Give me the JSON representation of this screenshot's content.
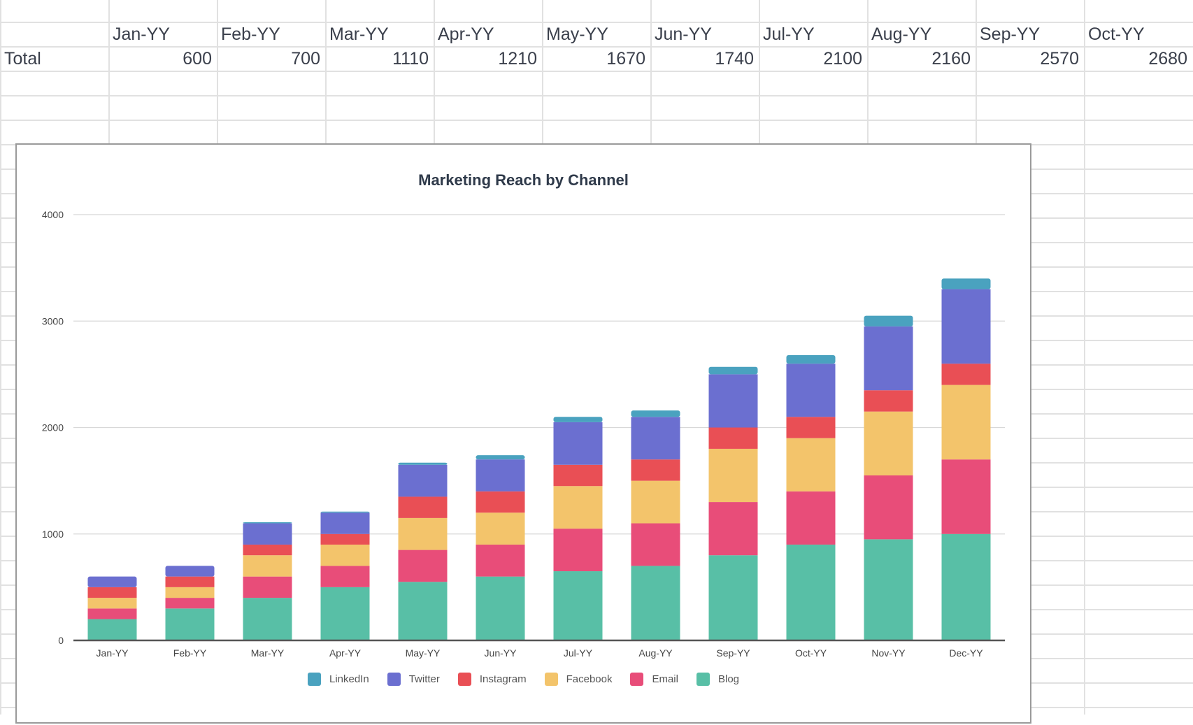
{
  "sheet": {
    "header_row": [
      "",
      "Jan-YY",
      "Feb-YY",
      "Mar-YY",
      "Apr-YY",
      "May-YY",
      "Jun-YY",
      "Jul-YY",
      "Aug-YY",
      "Sep-YY",
      "Oct-YY"
    ],
    "total_row": [
      "Total",
      "600",
      "700",
      "1110",
      "1210",
      "1670",
      "1740",
      "2100",
      "2160",
      "2570",
      "2680"
    ]
  },
  "chart_data": {
    "type": "bar",
    "stacked": true,
    "title": "Marketing Reach by Channel",
    "xlabel": "",
    "ylabel": "",
    "ylim": [
      0,
      4000
    ],
    "yticks": [
      0,
      1000,
      2000,
      3000,
      4000
    ],
    "grid": true,
    "legend_position": "bottom",
    "categories": [
      "Jan-YY",
      "Feb-YY",
      "Mar-YY",
      "Apr-YY",
      "May-YY",
      "Jun-YY",
      "Jul-YY",
      "Aug-YY",
      "Sep-YY",
      "Oct-YY",
      "Nov-YY",
      "Dec-YY"
    ],
    "series": [
      {
        "name": "Blog",
        "color": "#58bfa6",
        "values": [
          200,
          300,
          400,
          500,
          550,
          600,
          650,
          700,
          800,
          900,
          950,
          1000
        ]
      },
      {
        "name": "Email",
        "color": "#e84d79",
        "values": [
          100,
          100,
          200,
          200,
          300,
          300,
          400,
          400,
          500,
          500,
          600,
          700
        ]
      },
      {
        "name": "Facebook",
        "color": "#f3c46b",
        "values": [
          100,
          100,
          200,
          200,
          300,
          300,
          400,
          400,
          500,
          500,
          600,
          700
        ]
      },
      {
        "name": "Instagram",
        "color": "#e94f55",
        "values": [
          100,
          100,
          100,
          100,
          200,
          200,
          200,
          200,
          200,
          200,
          200,
          200
        ]
      },
      {
        "name": "Twitter",
        "color": "#6b6fd0",
        "values": [
          100,
          100,
          200,
          200,
          300,
          300,
          400,
          400,
          500,
          500,
          600,
          700
        ]
      },
      {
        "name": "LinkedIn",
        "color": "#4aa2bf",
        "values": [
          0,
          0,
          10,
          10,
          20,
          40,
          50,
          60,
          70,
          80,
          100,
          100
        ]
      }
    ],
    "legend_order": [
      "LinkedIn",
      "Twitter",
      "Instagram",
      "Facebook",
      "Email",
      "Blog"
    ]
  }
}
